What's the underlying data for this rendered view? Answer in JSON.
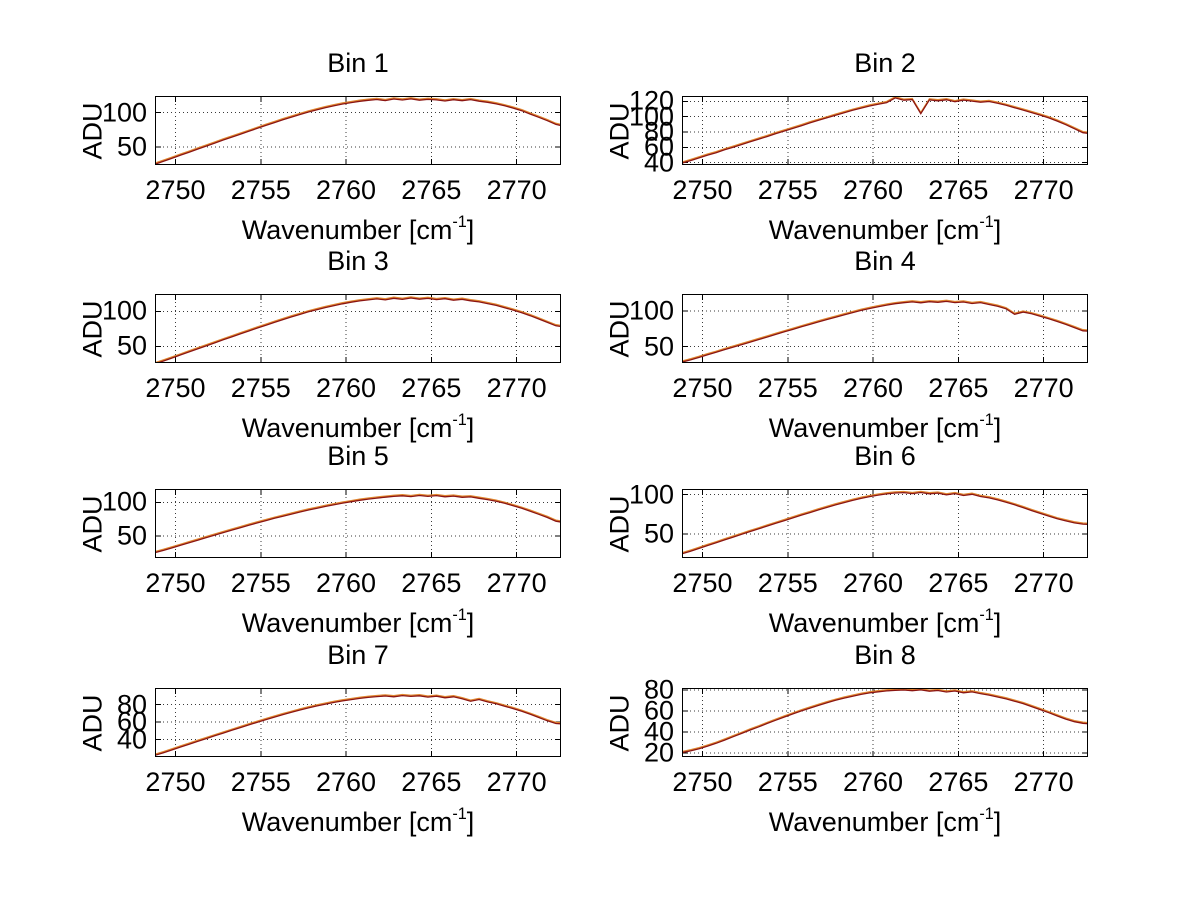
{
  "figure": {
    "background": "#ffffff",
    "axis_color": "#000000",
    "grid_color": "#3a3a3a",
    "line_color": "#8b1512",
    "line_underlay_color": "#e0862e",
    "ylabel": "ADU",
    "xlabel_pre": "Wavenumber [cm",
    "xlabel_sup": "-1",
    "xlabel_post": "]"
  },
  "chart_data": [
    {
      "type": "line",
      "title": "Bin 1",
      "xlabel": "Wavenumber [cm^-1]",
      "ylabel": "ADU",
      "xlim": [
        2748.8,
        2772.6
      ],
      "ylim": [
        24,
        124
      ],
      "xticks": [
        2750,
        2755,
        2760,
        2765,
        2770
      ],
      "yticks": [
        50,
        100
      ],
      "grid": true,
      "x_start": 2748.8,
      "x_step": 0.5,
      "values": [
        25.2,
        29.5,
        33.8,
        38.4,
        42.6,
        47.1,
        51.4,
        55.8,
        60.2,
        64.5,
        68.7,
        72.9,
        77.2,
        81.4,
        85.5,
        89.6,
        93.4,
        97.2,
        100.8,
        104.1,
        107.2,
        109.9,
        112.4,
        114.5,
        116.3,
        117.8,
        118.9,
        117.4,
        119.6,
        118.2,
        119.8,
        117.9,
        119.1,
        118.4,
        116.8,
        118.6,
        117.2,
        118.8,
        116.4,
        114.9,
        112.6,
        109.8,
        106.4,
        102.7,
        97.8,
        93.1,
        88.2,
        82.9,
        80.1
      ]
    },
    {
      "type": "line",
      "title": "Bin 2",
      "xlabel": "Wavenumber [cm^-1]",
      "ylabel": "ADU",
      "xlim": [
        2748.8,
        2772.6
      ],
      "ylim": [
        37,
        127
      ],
      "xticks": [
        2750,
        2755,
        2760,
        2765,
        2770
      ],
      "yticks": [
        40,
        60,
        80,
        100,
        120
      ],
      "grid": true,
      "x_start": 2748.8,
      "x_step": 0.5,
      "values": [
        39.5,
        42.8,
        46.2,
        49.9,
        53.1,
        56.8,
        60.2,
        63.7,
        67.3,
        70.8,
        74.2,
        77.9,
        81.3,
        84.8,
        88.2,
        91.9,
        95.3,
        98.6,
        101.9,
        105.2,
        108.4,
        111.2,
        113.9,
        116.3,
        118.4,
        124.5,
        121.5,
        122.3,
        104.0,
        121.9,
        120.8,
        122.1,
        119.6,
        121.7,
        120.4,
        118.9,
        119.8,
        117.6,
        114.9,
        111.8,
        108.6,
        105.3,
        102.1,
        98.4,
        94.2,
        89.6,
        84.3,
        79.1,
        77.8
      ]
    },
    {
      "type": "line",
      "title": "Bin 3",
      "xlabel": "Wavenumber [cm^-1]",
      "ylabel": "ADU",
      "xlim": [
        2748.8,
        2772.6
      ],
      "ylim": [
        26,
        125
      ],
      "xticks": [
        2750,
        2755,
        2760,
        2765,
        2770
      ],
      "yticks": [
        50,
        100
      ],
      "grid": true,
      "x_start": 2748.8,
      "x_step": 0.5,
      "values": [
        24.9,
        28.8,
        33.2,
        37.6,
        41.9,
        46.3,
        50.6,
        54.9,
        59.3,
        63.4,
        67.8,
        71.9,
        76.2,
        80.3,
        84.2,
        88.3,
        92.1,
        95.8,
        99.4,
        102.6,
        105.6,
        108.4,
        110.9,
        113.2,
        115.1,
        116.6,
        117.9,
        116.5,
        118.8,
        117.3,
        119.2,
        117.6,
        118.7,
        116.9,
        118.2,
        116.1,
        117.4,
        115.2,
        113.6,
        111.2,
        108.6,
        105.4,
        101.9,
        98.1,
        93.8,
        89.2,
        84.3,
        79.4,
        77.6
      ]
    },
    {
      "type": "line",
      "title": "Bin 4",
      "xlabel": "Wavenumber [cm^-1]",
      "ylabel": "ADU",
      "xlim": [
        2748.8,
        2772.6
      ],
      "ylim": [
        27,
        124
      ],
      "xticks": [
        2750,
        2755,
        2760,
        2765,
        2770
      ],
      "yticks": [
        50,
        100
      ],
      "grid": true,
      "x_start": 2748.8,
      "x_step": 0.5,
      "values": [
        28.2,
        31.4,
        34.9,
        38.6,
        42.1,
        45.8,
        49.3,
        52.9,
        56.4,
        60.1,
        63.6,
        67.2,
        70.8,
        74.3,
        77.9,
        81.2,
        84.8,
        88.1,
        91.4,
        94.6,
        97.8,
        100.9,
        103.6,
        106.2,
        108.4,
        110.3,
        111.8,
        112.9,
        111.6,
        113.2,
        112.4,
        113.6,
        111.9,
        112.8,
        110.6,
        111.9,
        109.3,
        106.8,
        103.2,
        95.4,
        98.6,
        96.2,
        92.8,
        89.1,
        85.4,
        81.2,
        76.8,
        72.3,
        71.4
      ]
    },
    {
      "type": "line",
      "title": "Bin 5",
      "xlabel": "Wavenumber [cm^-1]",
      "ylabel": "ADU",
      "xlim": [
        2748.8,
        2772.6
      ],
      "ylim": [
        17,
        120
      ],
      "xticks": [
        2750,
        2755,
        2760,
        2765,
        2770
      ],
      "yticks": [
        50,
        100
      ],
      "grid": true,
      "x_start": 2748.8,
      "x_step": 0.5,
      "values": [
        25.0,
        28.4,
        32.1,
        35.9,
        39.8,
        43.6,
        47.4,
        51.2,
        54.9,
        58.6,
        62.3,
        65.9,
        69.4,
        72.8,
        76.2,
        79.4,
        82.6,
        85.7,
        88.6,
        91.4,
        94.1,
        96.6,
        98.9,
        101.1,
        103.1,
        104.9,
        106.4,
        107.8,
        108.9,
        109.8,
        108.7,
        110.3,
        108.9,
        110.1,
        108.4,
        109.4,
        107.6,
        108.2,
        106.1,
        104.2,
        101.8,
        98.6,
        95.1,
        91.2,
        86.9,
        82.3,
        77.4,
        71.9,
        69.8
      ]
    },
    {
      "type": "line",
      "title": "Bin 6",
      "xlabel": "Wavenumber [cm^-1]",
      "ylabel": "ADU",
      "xlim": [
        2748.8,
        2772.6
      ],
      "ylim": [
        20,
        107
      ],
      "xticks": [
        2750,
        2755,
        2760,
        2765,
        2770
      ],
      "yticks": [
        50,
        100
      ],
      "grid": true,
      "x_start": 2748.8,
      "x_step": 0.5,
      "values": [
        25.3,
        28.6,
        32.1,
        35.8,
        39.2,
        42.8,
        46.3,
        49.9,
        53.4,
        56.8,
        60.3,
        63.8,
        67.2,
        70.6,
        74.1,
        77.3,
        80.6,
        83.8,
        86.9,
        89.8,
        92.6,
        95.2,
        97.4,
        99.3,
        100.8,
        101.9,
        102.4,
        101.2,
        102.6,
        100.9,
        101.8,
        99.6,
        101.2,
        98.8,
        100.3,
        97.6,
        95.8,
        93.2,
        90.4,
        87.1,
        83.6,
        79.8,
        76.2,
        72.8,
        69.4,
        66.8,
        64.2,
        62.8,
        62.1
      ]
    },
    {
      "type": "line",
      "title": "Bin 7",
      "xlabel": "Wavenumber [cm^-1]",
      "ylabel": "ADU",
      "xlim": [
        2748.8,
        2772.6
      ],
      "ylim": [
        20,
        99
      ],
      "xticks": [
        2750,
        2755,
        2760,
        2765,
        2770
      ],
      "yticks": [
        40,
        60,
        80
      ],
      "grid": true,
      "x_start": 2748.8,
      "x_step": 0.5,
      "values": [
        22.0,
        24.9,
        28.1,
        31.4,
        34.6,
        37.9,
        41.1,
        44.3,
        47.4,
        50.6,
        53.7,
        56.8,
        59.8,
        62.8,
        65.7,
        68.5,
        71.2,
        73.8,
        76.2,
        78.5,
        80.6,
        82.5,
        84.2,
        85.7,
        87.1,
        88.2,
        89.1,
        89.8,
        88.9,
        90.3,
        89.4,
        90.1,
        88.6,
        89.6,
        87.8,
        88.9,
        86.8,
        83.9,
        85.8,
        83.1,
        80.9,
        78.2,
        75.4,
        72.3,
        68.9,
        65.2,
        61.4,
        58.3,
        57.8
      ]
    },
    {
      "type": "line",
      "title": "Bin 8",
      "xlabel": "Wavenumber [cm^-1]",
      "ylabel": "ADU",
      "xlim": [
        2748.8,
        2772.6
      ],
      "ylim": [
        16,
        82
      ],
      "xticks": [
        2750,
        2755,
        2760,
        2765,
        2770
      ],
      "yticks": [
        20,
        40,
        60,
        80
      ],
      "grid": true,
      "x_start": 2748.8,
      "x_step": 0.5,
      "values": [
        20.2,
        21.8,
        23.9,
        26.4,
        29.1,
        32.2,
        35.4,
        38.6,
        41.8,
        44.9,
        48.1,
        51.2,
        54.3,
        57.2,
        60.1,
        62.8,
        65.4,
        67.9,
        70.2,
        72.3,
        74.2,
        75.9,
        77.3,
        78.4,
        79.2,
        79.8,
        80.1,
        79.4,
        80.2,
        78.9,
        79.6,
        78.2,
        79.1,
        77.4,
        78.3,
        76.6,
        75.2,
        73.4,
        71.6,
        69.4,
        67.1,
        64.2,
        61.3,
        58.4,
        55.2,
        52.3,
        49.8,
        48.2,
        47.6
      ]
    }
  ]
}
